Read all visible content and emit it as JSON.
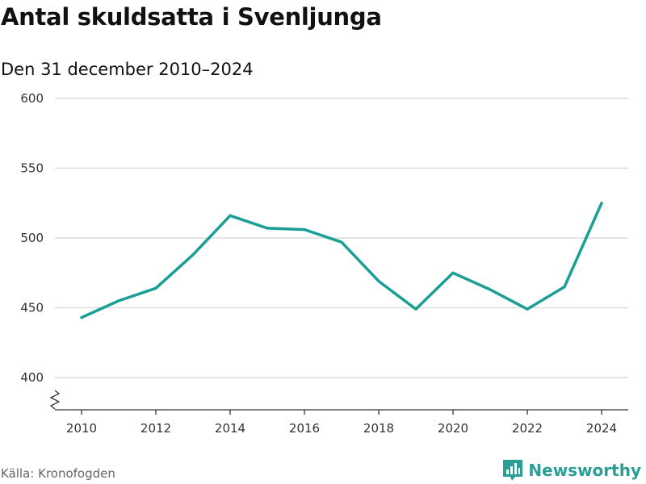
{
  "header": {
    "title": "Antal skuldsatta i Svenljunga",
    "subtitle": "Den 31 december 2010–2024"
  },
  "footer": {
    "source": "Källa: Kronofogden",
    "brand": "Newsworthy"
  },
  "colors": {
    "line": "#1a9e96",
    "grid": "#dcdcdc",
    "brand": "#2b9e96"
  },
  "chart_data": {
    "type": "line",
    "title": "Antal skuldsatta i Svenljunga",
    "subtitle": "Den 31 december 2010–2024",
    "xlabel": "",
    "ylabel": "",
    "x": [
      2010,
      2011,
      2012,
      2013,
      2014,
      2015,
      2016,
      2017,
      2018,
      2019,
      2020,
      2021,
      2022,
      2023,
      2024
    ],
    "values": [
      443,
      455,
      464,
      488,
      516,
      507,
      506,
      497,
      469,
      449,
      475,
      463,
      449,
      465,
      525
    ],
    "ylim": [
      400,
      600
    ],
    "xlim": [
      2010,
      2024
    ],
    "yticks": [
      400,
      450,
      500,
      550,
      600
    ],
    "xticks": [
      2010,
      2012,
      2014,
      2016,
      2018,
      2020,
      2022,
      2024
    ],
    "grid": true,
    "axis_break": true
  }
}
